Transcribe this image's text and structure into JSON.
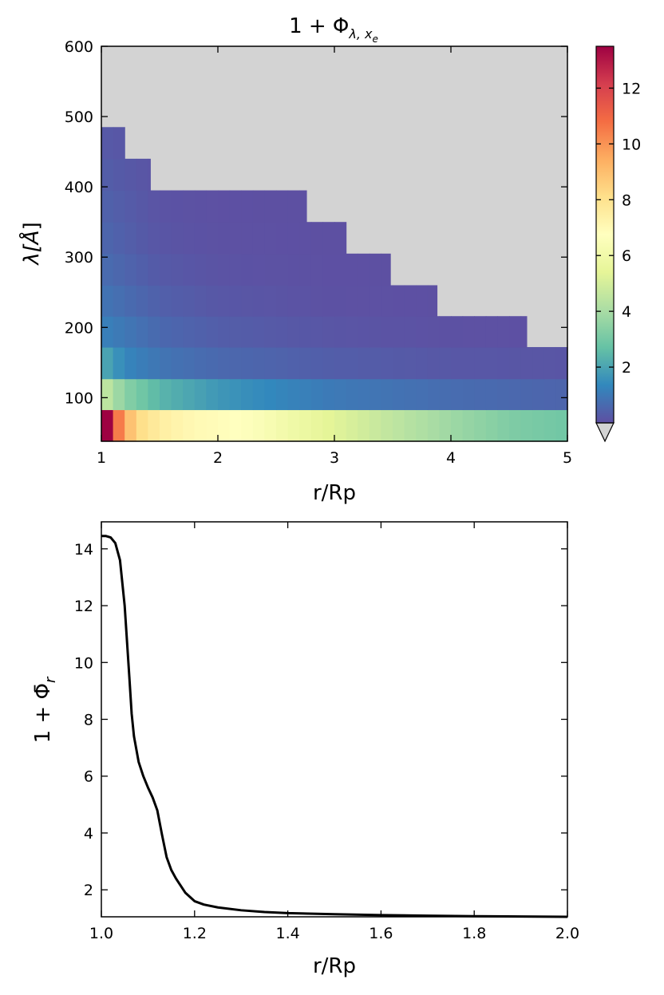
{
  "chart_data": [
    {
      "type": "heatmap",
      "title_base": "1 + Φ",
      "title_sub": "λ, x",
      "title_sub2": "e",
      "xlabel": "r/Rp",
      "ylabel_main": "λ[",
      "ylabel_unit": "Å",
      "ylabel_end": "]",
      "xlim": [
        1,
        5
      ],
      "ylim": [
        38,
        600
      ],
      "x_ticks": [
        "1",
        "2",
        "3",
        "4",
        "5"
      ],
      "y_ticks": [
        "100",
        "200",
        "300",
        "400",
        "500",
        "600"
      ],
      "colorbar": {
        "cmap": "Spectral_r",
        "vmin": 0,
        "vmax": 13.5,
        "ticks": [
          "2",
          "4",
          "6",
          "8",
          "10",
          "12"
        ],
        "extend": "min",
        "under_color": "#d3d3d3"
      },
      "masked_color": "#d3d3d3",
      "y_edges": [
        38,
        83,
        127,
        172,
        216,
        260,
        305,
        350,
        395,
        440,
        485,
        600
      ],
      "band_xmax": [
        5.0,
        5.0,
        5.0,
        4.65,
        3.88,
        3.48,
        3.1,
        2.76,
        1.42,
        1.2,
        1.0
      ],
      "bands": [
        {
          "x": [
            1.0,
            1.05,
            1.1,
            1.15,
            1.2,
            1.3,
            1.5,
            1.8,
            2.0,
            2.3,
            2.6,
            3.0,
            3.5,
            4.0,
            4.5,
            5.0
          ],
          "v": [
            13.5,
            13.5,
            12.5,
            10.5,
            9.5,
            8.3,
            7.5,
            7.0,
            6.9,
            6.6,
            6.0,
            5.3,
            4.5,
            3.8,
            3.2,
            2.9
          ]
        },
        {
          "x": [
            1.0,
            1.2,
            1.5,
            2.0,
            2.5,
            3.0,
            4.0,
            5.0
          ],
          "v": [
            4.8,
            3.4,
            2.4,
            1.7,
            1.3,
            1.0,
            0.7,
            0.5
          ]
        },
        {
          "x": [
            1.0,
            1.2,
            1.5,
            2.0,
            3.0,
            4.0,
            5.0
          ],
          "v": [
            2.2,
            1.3,
            0.9,
            0.6,
            0.35,
            0.2,
            0.15
          ]
        },
        {
          "x": [
            1.0,
            1.5,
            2.0,
            3.0,
            4.0,
            5.0
          ],
          "v": [
            1.2,
            0.6,
            0.35,
            0.15,
            0.05,
            0.02
          ]
        },
        {
          "x": [
            1.0,
            1.5,
            2.0,
            3.0,
            4.0,
            5.0
          ],
          "v": [
            0.9,
            0.4,
            0.2,
            0.05,
            0.02,
            0.01
          ]
        },
        {
          "x": [
            1.0,
            1.5,
            2.0,
            3.0,
            4.0,
            5.0
          ],
          "v": [
            0.7,
            0.25,
            0.1,
            0.03,
            0.01,
            0.01
          ]
        },
        {
          "x": [
            1.0,
            1.5,
            2.0,
            3.0,
            4.0,
            5.0
          ],
          "v": [
            0.55,
            0.15,
            0.05,
            0.02,
            0.01,
            0.01
          ]
        },
        {
          "x": [
            1.0,
            1.5,
            2.0,
            3.0,
            4.0,
            5.0
          ],
          "v": [
            0.45,
            0.1,
            0.03,
            0.01,
            0.01,
            0.01
          ]
        },
        {
          "x": [
            1.0,
            1.5,
            2.0,
            3.0,
            4.0,
            5.0
          ],
          "v": [
            0.35,
            0.08,
            0.02,
            0.01,
            0.01,
            0.01
          ]
        },
        {
          "x": [
            1.0,
            1.5,
            5.0
          ],
          "v": [
            0.25,
            0.05,
            0.01
          ]
        },
        {
          "x": [
            1.0,
            5.0
          ],
          "v": [
            0.15,
            0.01
          ]
        }
      ]
    },
    {
      "type": "line",
      "xlabel": "r/Rp",
      "ylabel_main": "1 + ",
      "ylabel_sym": "Φ",
      "ylabel_bar": "̄",
      "ylabel_sub": "r",
      "xlim": [
        1.0,
        2.0
      ],
      "ylim": [
        1.05,
        14.95
      ],
      "x_ticks": [
        "1.0",
        "1.2",
        "1.4",
        "1.6",
        "1.8",
        "2.0"
      ],
      "y_ticks": [
        "2",
        "4",
        "6",
        "8",
        "10",
        "12",
        "14"
      ],
      "line_color": "#000000",
      "series": [
        {
          "x": [
            1.0,
            1.01,
            1.02,
            1.03,
            1.04,
            1.05,
            1.06,
            1.065,
            1.07,
            1.08,
            1.09,
            1.1,
            1.11,
            1.12,
            1.13,
            1.14,
            1.15,
            1.16,
            1.18,
            1.2,
            1.22,
            1.25,
            1.3,
            1.35,
            1.4,
            1.5,
            1.6,
            1.7,
            1.8,
            1.9,
            2.0
          ],
          "y": [
            14.45,
            14.45,
            14.4,
            14.2,
            13.6,
            12.0,
            9.5,
            8.2,
            7.4,
            6.5,
            6.0,
            5.6,
            5.25,
            4.8,
            3.95,
            3.15,
            2.7,
            2.4,
            1.9,
            1.6,
            1.48,
            1.38,
            1.28,
            1.22,
            1.18,
            1.14,
            1.11,
            1.09,
            1.07,
            1.06,
            1.05
          ]
        }
      ]
    }
  ]
}
